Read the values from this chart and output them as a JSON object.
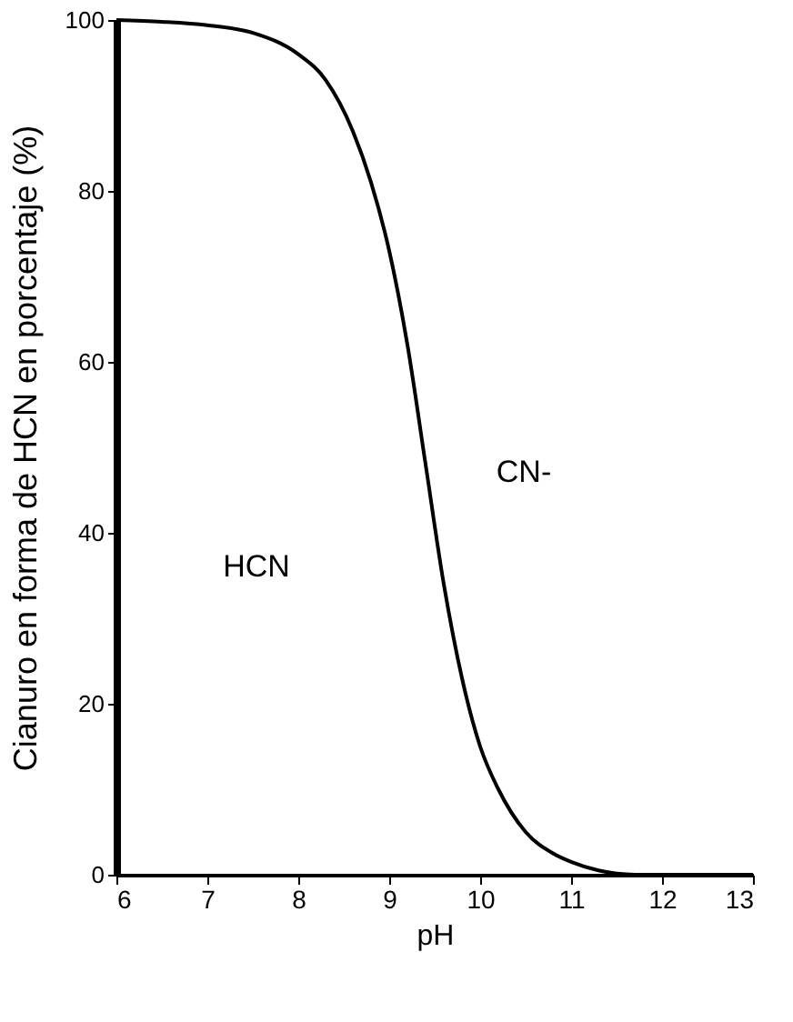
{
  "chart_data": {
    "type": "line",
    "xlabel": "pH",
    "ylabel": "Cianuro en forma de HCN en porcentaje (%)",
    "x": [
      6,
      6.5,
      7,
      7.5,
      8,
      8.3,
      8.6,
      8.8,
      9,
      9.2,
      9.4,
      9.6,
      9.8,
      10,
      10.2,
      10.5,
      10.8,
      11,
      11.3,
      11.7,
      12,
      13
    ],
    "series": [
      {
        "color": "#000000",
        "values": [
          100,
          99.8,
          99.4,
          98.5,
          96,
          93,
          87,
          81,
          73,
          62,
          48,
          34,
          23,
          15,
          10,
          5,
          2.5,
          1.5,
          0.5,
          0,
          0,
          0
        ]
      }
    ],
    "xlim": [
      6,
      13
    ],
    "ylim": [
      0,
      100
    ],
    "xticks": [
      6,
      7,
      8,
      9,
      10,
      11,
      12,
      13
    ],
    "yticks": [
      0,
      20,
      40,
      60,
      80,
      100
    ],
    "grid": false,
    "legend": false,
    "marker": "none",
    "line_style": "solid",
    "annotations": [
      "HCN",
      "CN-"
    ]
  }
}
